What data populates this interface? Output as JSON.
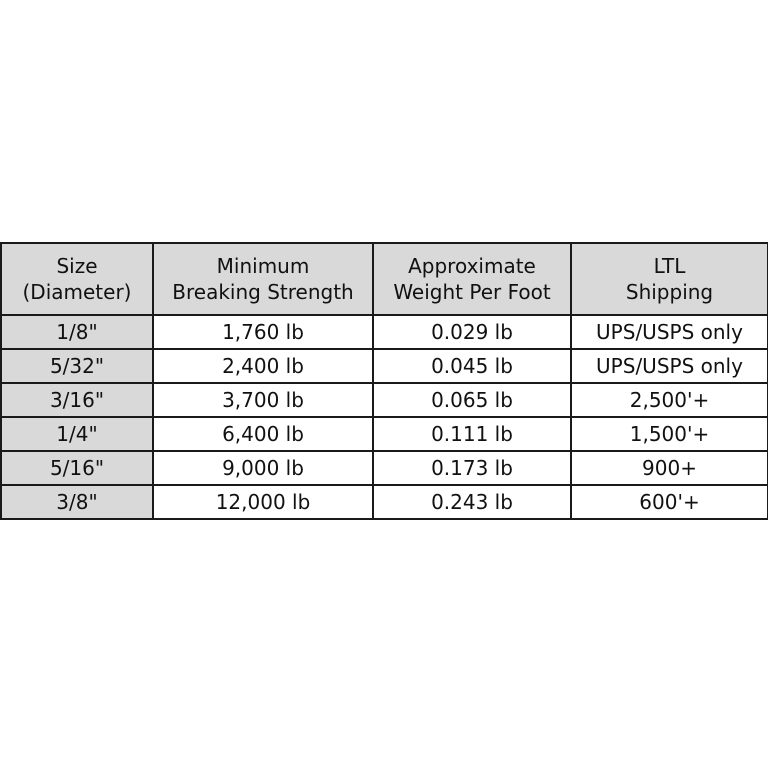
{
  "table": {
    "headers": [
      [
        "Size",
        "(Diameter)"
      ],
      [
        "Minimum",
        "Breaking Strength"
      ],
      [
        "Approximate",
        "Weight Per Foot"
      ],
      [
        "LTL",
        "Shipping"
      ]
    ],
    "rows": [
      [
        "1/8\"",
        "1,760 lb",
        "0.029 lb",
        "UPS/USPS only"
      ],
      [
        "5/32\"",
        "2,400 lb",
        "0.045 lb",
        "UPS/USPS only"
      ],
      [
        "3/16\"",
        "3,700 lb",
        "0.065 lb",
        "2,500'+"
      ],
      [
        "1/4\"",
        "6,400 lb",
        "0.111 lb",
        "1,500'+"
      ],
      [
        "5/16\"",
        "9,000 lb",
        "0.173 lb",
        "900+"
      ],
      [
        "3/8\"",
        "12,000 lb",
        "0.243 lb",
        "600'+"
      ]
    ],
    "colors": {
      "header_bg": "#d9d9d9",
      "border": "#1a1a1a"
    }
  }
}
